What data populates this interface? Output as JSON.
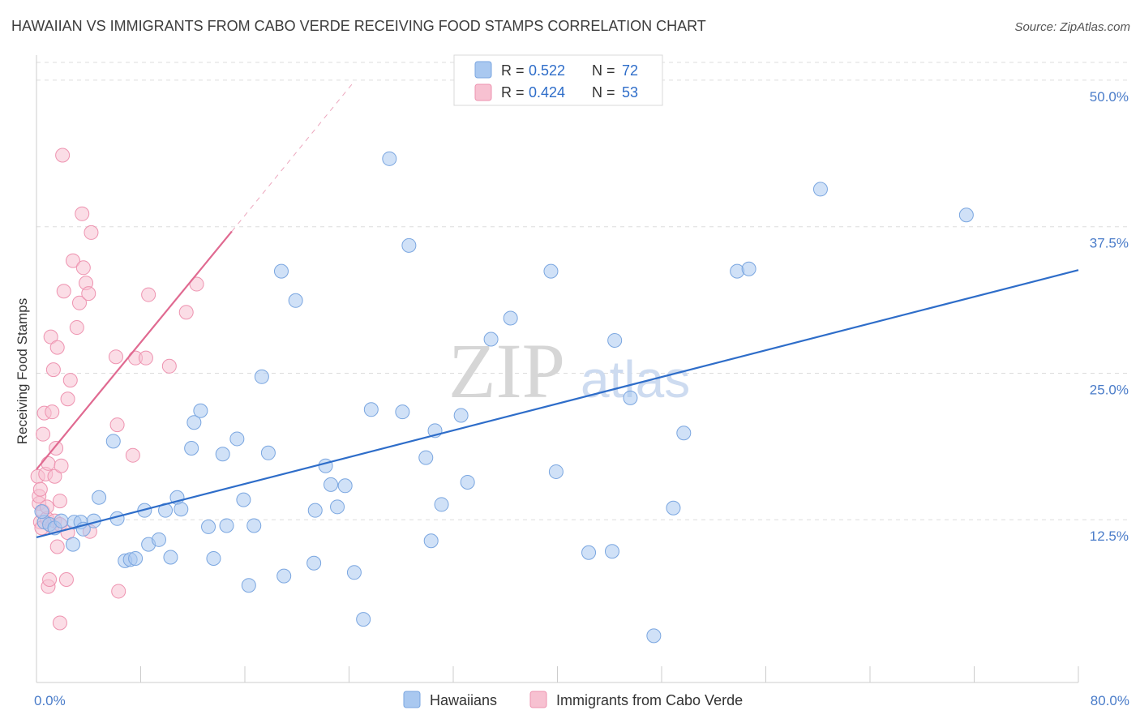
{
  "title": "HAWAIIAN VS IMMIGRANTS FROM CABO VERDE RECEIVING FOOD STAMPS CORRELATION CHART",
  "source": "Source: ZipAtlas.com",
  "watermark": {
    "zip": "ZIP",
    "atlas": "atlas"
  },
  "colors": {
    "blue_fill": "#a9c8f0",
    "blue_stroke": "#7aa6e0",
    "blue_line": "#2e6dc9",
    "pink_fill": "#f7c1d1",
    "pink_stroke": "#ee93b0",
    "pink_line": "#e06a91",
    "grid": "#dddddd",
    "axis_text": "#4a7cc9"
  },
  "legend_top": {
    "rows": [
      {
        "r_label": "R =",
        "r_value": "0.522",
        "n_label": "N =",
        "n_value": "72"
      },
      {
        "r_label": "R =",
        "r_value": "0.424",
        "n_label": "N =",
        "n_value": "53"
      }
    ]
  },
  "legend_bottom": [
    "Hawaiians",
    "Immigrants from Cabo Verde"
  ],
  "chart_data": {
    "type": "scatter",
    "title": "HAWAIIAN VS IMMIGRANTS FROM CABO VERDE RECEIVING FOOD STAMPS CORRELATION CHART",
    "xlabel": "",
    "ylabel": "Receiving Food Stamps",
    "xlim": [
      0,
      80
    ],
    "ylim": [
      0,
      52
    ],
    "x_tick_labels": [
      "0.0%",
      "80.0%"
    ],
    "y_ticks": [
      12.5,
      25.0,
      37.5,
      50.0
    ],
    "y_tick_labels": [
      "12.5%",
      "25.0%",
      "37.5%",
      "50.0%"
    ],
    "grid": "horizontal dashed",
    "series": [
      {
        "name": "Hawaiians",
        "r": 0.522,
        "n": 72,
        "trend": {
          "x": [
            0,
            80
          ],
          "y": [
            11.0,
            33.8
          ]
        },
        "points": [
          [
            0.6,
            12.3
          ],
          [
            1.0,
            12.1
          ],
          [
            1.4,
            11.8
          ],
          [
            1.9,
            12.4
          ],
          [
            2.9,
            12.3
          ],
          [
            2.8,
            10.4
          ],
          [
            3.4,
            12.3
          ],
          [
            3.6,
            11.7
          ],
          [
            4.4,
            12.4
          ],
          [
            4.8,
            14.4
          ],
          [
            5.9,
            19.2
          ],
          [
            6.2,
            12.6
          ],
          [
            6.8,
            9.0
          ],
          [
            7.2,
            9.1
          ],
          [
            7.6,
            9.2
          ],
          [
            8.3,
            13.3
          ],
          [
            8.6,
            10.4
          ],
          [
            9.4,
            10.8
          ],
          [
            9.9,
            13.3
          ],
          [
            10.3,
            9.3
          ],
          [
            10.8,
            14.4
          ],
          [
            11.1,
            13.4
          ],
          [
            11.9,
            18.6
          ],
          [
            12.1,
            20.8
          ],
          [
            12.6,
            21.8
          ],
          [
            13.2,
            11.9
          ],
          [
            13.6,
            9.2
          ],
          [
            14.3,
            18.1
          ],
          [
            14.6,
            12.0
          ],
          [
            15.4,
            19.4
          ],
          [
            15.9,
            14.2
          ],
          [
            16.3,
            6.9
          ],
          [
            16.7,
            12.0
          ],
          [
            17.3,
            24.7
          ],
          [
            17.8,
            18.2
          ],
          [
            18.8,
            33.7
          ],
          [
            19.0,
            7.7
          ],
          [
            19.9,
            31.2
          ],
          [
            21.3,
            8.8
          ],
          [
            21.4,
            13.3
          ],
          [
            22.2,
            17.1
          ],
          [
            22.6,
            15.5
          ],
          [
            23.1,
            13.6
          ],
          [
            23.7,
            15.4
          ],
          [
            24.4,
            8.0
          ],
          [
            25.1,
            4.0
          ],
          [
            25.7,
            21.9
          ],
          [
            27.1,
            43.3
          ],
          [
            28.1,
            21.7
          ],
          [
            28.6,
            35.9
          ],
          [
            29.9,
            17.8
          ],
          [
            30.3,
            10.7
          ],
          [
            30.6,
            20.1
          ],
          [
            31.1,
            13.8
          ],
          [
            32.6,
            21.4
          ],
          [
            33.1,
            15.7
          ],
          [
            34.9,
            27.9
          ],
          [
            36.4,
            29.7
          ],
          [
            39.5,
            33.7
          ],
          [
            39.9,
            16.6
          ],
          [
            42.4,
            9.7
          ],
          [
            44.2,
            9.8
          ],
          [
            44.4,
            27.8
          ],
          [
            45.6,
            22.9
          ],
          [
            47.4,
            2.6
          ],
          [
            48.9,
            13.5
          ],
          [
            49.7,
            19.9
          ],
          [
            53.8,
            33.7
          ],
          [
            54.7,
            33.9
          ],
          [
            60.2,
            40.7
          ],
          [
            71.4,
            38.5
          ],
          [
            0.4,
            13.2
          ]
        ]
      },
      {
        "name": "Immigrants from Cabo Verde",
        "r": 0.424,
        "n": 53,
        "trend": {
          "x": [
            0,
            15.0
          ],
          "y": [
            16.8,
            37.1
          ]
        },
        "trend_dashed": {
          "x": [
            15.0,
            24.4
          ],
          "y": [
            37.1,
            49.9
          ]
        },
        "points": [
          [
            0.1,
            16.2
          ],
          [
            0.2,
            13.9
          ],
          [
            0.3,
            12.3
          ],
          [
            0.4,
            11.8
          ],
          [
            0.5,
            13.2
          ],
          [
            0.5,
            19.8
          ],
          [
            0.6,
            21.6
          ],
          [
            0.7,
            16.4
          ],
          [
            0.8,
            12.6
          ],
          [
            0.9,
            17.3
          ],
          [
            0.9,
            6.8
          ],
          [
            1.0,
            7.4
          ],
          [
            1.1,
            28.1
          ],
          [
            1.2,
            21.7
          ],
          [
            1.2,
            11.9
          ],
          [
            1.3,
            25.3
          ],
          [
            1.4,
            16.2
          ],
          [
            1.4,
            12.4
          ],
          [
            1.5,
            18.6
          ],
          [
            1.6,
            10.2
          ],
          [
            1.6,
            27.2
          ],
          [
            1.8,
            12.1
          ],
          [
            1.8,
            3.7
          ],
          [
            1.8,
            14.1
          ],
          [
            1.9,
            17.1
          ],
          [
            2.0,
            43.6
          ],
          [
            2.1,
            32.0
          ],
          [
            2.3,
            7.4
          ],
          [
            2.4,
            11.4
          ],
          [
            2.4,
            22.8
          ],
          [
            2.6,
            24.4
          ],
          [
            2.8,
            34.6
          ],
          [
            3.1,
            28.9
          ],
          [
            3.3,
            31.0
          ],
          [
            3.5,
            38.6
          ],
          [
            3.6,
            34.0
          ],
          [
            3.8,
            32.7
          ],
          [
            4.0,
            31.8
          ],
          [
            4.1,
            11.5
          ],
          [
            4.2,
            37.0
          ],
          [
            6.1,
            26.4
          ],
          [
            6.2,
            20.6
          ],
          [
            6.3,
            6.4
          ],
          [
            7.4,
            18.0
          ],
          [
            7.6,
            26.3
          ],
          [
            8.4,
            26.3
          ],
          [
            8.6,
            31.7
          ],
          [
            10.2,
            25.6
          ],
          [
            11.5,
            30.2
          ],
          [
            12.3,
            32.6
          ],
          [
            0.2,
            14.5
          ],
          [
            0.8,
            13.6
          ],
          [
            0.3,
            15.1
          ]
        ]
      }
    ]
  }
}
